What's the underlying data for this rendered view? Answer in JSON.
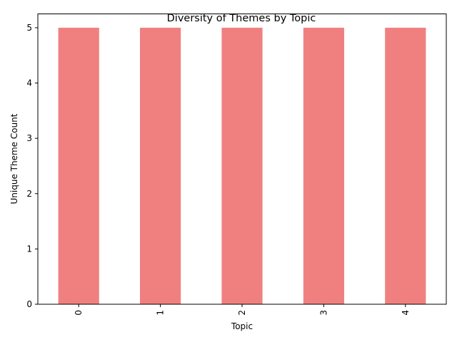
{
  "chart_data": {
    "type": "bar",
    "title": "Diversity of Themes by Topic",
    "xlabel": "Topic",
    "ylabel": "Unique Theme Count",
    "categories": [
      "0",
      "1",
      "2",
      "3",
      "4"
    ],
    "values": [
      5,
      5,
      5,
      5,
      5
    ],
    "ylim": [
      0,
      5.25
    ],
    "yticks": [
      0,
      1,
      2,
      3,
      4,
      5
    ],
    "bar_color": "#f08080",
    "grid": false,
    "legend": "none",
    "x_tick_rotation": "vertical"
  }
}
